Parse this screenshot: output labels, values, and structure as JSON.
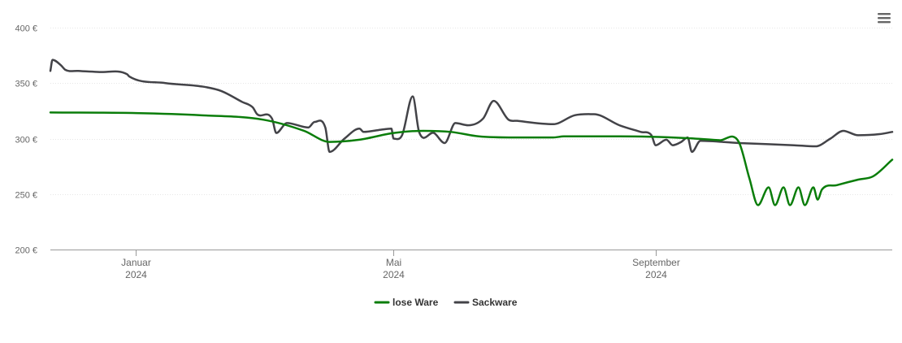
{
  "menu": {
    "icon": "hamburger-menu-icon"
  },
  "chart_data": {
    "type": "line",
    "title": "",
    "xlabel": "",
    "ylabel": "",
    "ylim": [
      200,
      400
    ],
    "y_ticks": [
      200,
      250,
      300,
      350,
      400
    ],
    "y_tick_labels": [
      "200 €",
      "250 €",
      "300 €",
      "350 €",
      "400 €"
    ],
    "x_range": [
      "2023-11-22",
      "2024-12-21"
    ],
    "x_ticks": [
      {
        "date": "2024-01-01",
        "month": "Januar",
        "year": "2024"
      },
      {
        "date": "2024-05-01",
        "month": "Mai",
        "year": "2024"
      },
      {
        "date": "2024-09-01",
        "month": "September",
        "year": "2024"
      }
    ],
    "grid": "horizontal",
    "legend_position": "bottom-center",
    "series": [
      {
        "name": "lose Ware",
        "color": "#0a7d0a",
        "points": [
          [
            "2023-11-22",
            323.5
          ],
          [
            "2024-01-01",
            323
          ],
          [
            "2024-02-01",
            321
          ],
          [
            "2024-03-01",
            317
          ],
          [
            "2024-03-20",
            307
          ],
          [
            "2024-04-01",
            297
          ],
          [
            "2024-04-15",
            299
          ],
          [
            "2024-05-01",
            305
          ],
          [
            "2024-05-15",
            307
          ],
          [
            "2024-05-28",
            306
          ],
          [
            "2024-06-10",
            302
          ],
          [
            "2024-07-01",
            301
          ],
          [
            "2024-07-15",
            301
          ],
          [
            "2024-07-20",
            302
          ],
          [
            "2024-08-15",
            302
          ],
          [
            "2024-09-15",
            300.5
          ],
          [
            "2024-10-01",
            298.5
          ],
          [
            "2024-10-10",
            297
          ],
          [
            "2024-10-15",
            264
          ],
          [
            "2024-10-19",
            240
          ],
          [
            "2024-10-24",
            256
          ],
          [
            "2024-10-27",
            240
          ],
          [
            "2024-10-31",
            256
          ],
          [
            "2024-11-03",
            240
          ],
          [
            "2024-11-07",
            256
          ],
          [
            "2024-11-10",
            240
          ],
          [
            "2024-11-14",
            256
          ],
          [
            "2024-11-16",
            245
          ],
          [
            "2024-11-18",
            254
          ],
          [
            "2024-11-25",
            258
          ],
          [
            "2024-12-05",
            263
          ],
          [
            "2024-12-12",
            266
          ],
          [
            "2024-12-21",
            281
          ]
        ]
      },
      {
        "name": "Sackware",
        "color": "#434348",
        "points": [
          [
            "2023-11-22",
            361
          ],
          [
            "2023-11-23",
            371
          ],
          [
            "2023-11-27",
            366
          ],
          [
            "2023-11-29",
            362
          ],
          [
            "2023-12-05",
            361
          ],
          [
            "2023-12-15",
            360
          ],
          [
            "2023-12-28",
            358
          ],
          [
            "2023-12-29",
            356
          ],
          [
            "2024-01-15",
            350
          ],
          [
            "2024-02-01",
            347
          ],
          [
            "2024-02-10",
            343
          ],
          [
            "2024-02-20",
            333
          ],
          [
            "2024-02-25",
            328
          ],
          [
            "2024-02-27",
            322
          ],
          [
            "2024-03-05",
            318
          ],
          [
            "2024-03-07",
            305
          ],
          [
            "2024-03-12",
            314
          ],
          [
            "2024-03-22",
            310
          ],
          [
            "2024-03-25",
            315
          ],
          [
            "2024-03-30",
            310
          ],
          [
            "2024-04-01",
            288
          ],
          [
            "2024-04-08",
            300
          ],
          [
            "2024-04-15",
            309
          ],
          [
            "2024-04-17",
            306
          ],
          [
            "2024-04-25",
            308
          ],
          [
            "2024-04-30",
            309
          ],
          [
            "2024-05-01",
            300
          ],
          [
            "2024-05-05",
            303
          ],
          [
            "2024-05-10",
            338
          ],
          [
            "2024-05-13",
            306
          ],
          [
            "2024-05-20",
            305
          ],
          [
            "2024-05-25",
            296
          ],
          [
            "2024-05-30",
            314
          ],
          [
            "2024-06-05",
            312
          ],
          [
            "2024-06-12",
            318
          ],
          [
            "2024-06-17",
            334
          ],
          [
            "2024-06-24",
            317
          ],
          [
            "2024-06-28",
            316
          ],
          [
            "2024-07-15",
            313
          ],
          [
            "2024-07-25",
            321
          ],
          [
            "2024-08-03",
            322
          ],
          [
            "2024-08-15",
            312
          ],
          [
            "2024-08-25",
            306
          ],
          [
            "2024-08-30",
            303
          ],
          [
            "2024-09-01",
            294
          ],
          [
            "2024-09-06",
            299
          ],
          [
            "2024-09-09",
            294
          ],
          [
            "2024-09-13",
            297
          ],
          [
            "2024-09-16",
            301
          ],
          [
            "2024-09-18",
            288
          ],
          [
            "2024-09-22",
            298
          ],
          [
            "2024-10-10",
            296
          ],
          [
            "2024-11-05",
            294
          ],
          [
            "2024-11-15",
            293
          ],
          [
            "2024-11-22",
            300
          ],
          [
            "2024-11-28",
            307
          ],
          [
            "2024-12-05",
            303
          ],
          [
            "2024-12-15",
            304
          ],
          [
            "2024-12-21",
            306
          ]
        ]
      }
    ]
  }
}
